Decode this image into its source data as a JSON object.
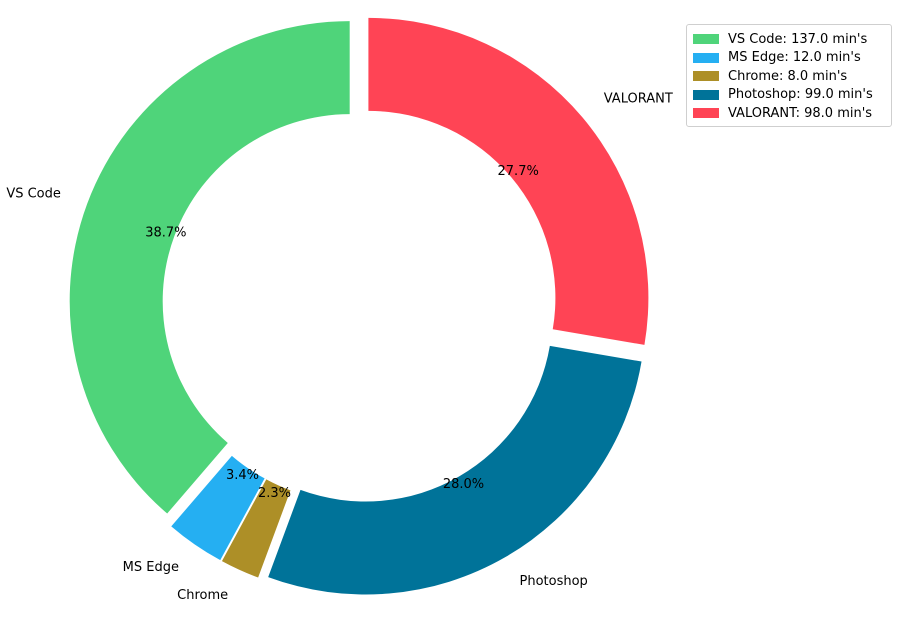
{
  "chart_data": {
    "type": "pie",
    "style": "donut",
    "start_angle_deg": 90,
    "direction": "counterclockwise",
    "slices": [
      {
        "label": "VS Code",
        "value": 137.0,
        "pct_label": "38.7%",
        "legend": "VS Code: 137.0 min's",
        "color": "#4fd47a"
      },
      {
        "label": "MS Edge",
        "value": 12.0,
        "pct_label": "3.4%",
        "legend": "MS Edge: 12.0 min's",
        "color": "#25aff2"
      },
      {
        "label": "Chrome",
        "value": 8.0,
        "pct_label": "2.3%",
        "legend": "Chrome: 8.0 min's",
        "color": "#ad8f27"
      },
      {
        "label": "Photoshop",
        "value": 99.0,
        "pct_label": "28.0%",
        "legend": "Photoshop: 99.0 min's",
        "color": "#007399"
      },
      {
        "label": "VALORANT",
        "value": 98.0,
        "pct_label": "27.7%",
        "legend": "VALORANT: 98.0 min's",
        "color": "#ff4455"
      }
    ],
    "legend_position": "top-right"
  }
}
